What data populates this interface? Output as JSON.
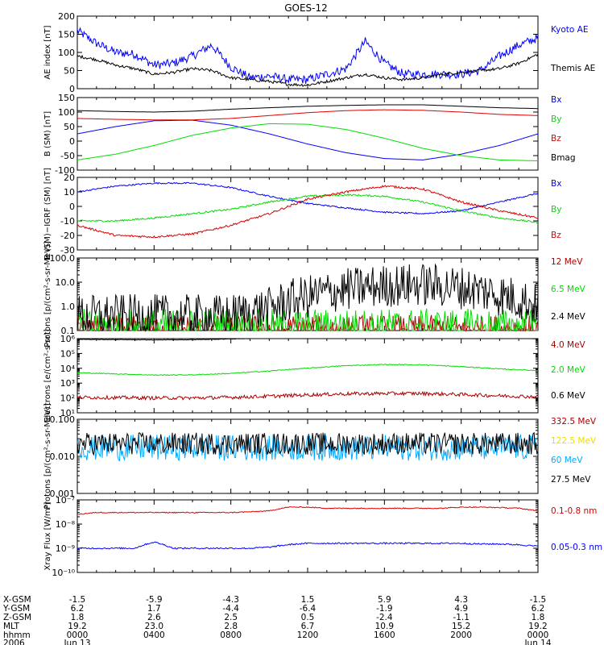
{
  "title": "GOES-12",
  "colors": {
    "black": "#000000",
    "blue": "#0000ff",
    "red": "#dd0000",
    "green": "#00dd00",
    "darkred": "#aa0000",
    "cyan": "#00aaff",
    "yellow": "#eedd00"
  },
  "bottom_axis": {
    "row_labels": [
      "X-GSM",
      "Y-GSM",
      "Z-GSM",
      "MLT",
      "hhmm",
      "2006"
    ],
    "columns": [
      [
        "-1.5",
        "6.2",
        "1.8",
        "19.2",
        "0000",
        "Jun 13"
      ],
      [
        "-5.9",
        "1.7",
        "2.6",
        "23.0",
        "0400",
        ""
      ],
      [
        "-4.3",
        "-4.4",
        "2.5",
        "2.8",
        "0800",
        ""
      ],
      [
        "1.5",
        "-6.4",
        "0.5",
        "6.7",
        "1200",
        ""
      ],
      [
        "5.9",
        "-1.9",
        "-2.4",
        "10.9",
        "1600",
        ""
      ],
      [
        "4.3",
        "4.9",
        "-1.1",
        "15.2",
        "2000",
        ""
      ],
      [
        "-1.5",
        "6.2",
        "1.8",
        "19.2",
        "0000",
        "Jun 14"
      ]
    ]
  },
  "chart_data": [
    {
      "type": "line",
      "ylabel": "AE index [nT]",
      "ylim": [
        0,
        200
      ],
      "yscale": "linear",
      "yticks": [
        "0",
        "50",
        "100",
        "150",
        "200"
      ],
      "x_hours": [
        0,
        1,
        2,
        3,
        4,
        5,
        6,
        7,
        8,
        9,
        10,
        11,
        12,
        13,
        14,
        15,
        16,
        17,
        18,
        19,
        20,
        21,
        22,
        23,
        24
      ],
      "series": [
        {
          "name": "Kyoto AE",
          "color": "blue",
          "noise": 12,
          "values": [
            160,
            125,
            100,
            95,
            65,
            70,
            90,
            120,
            60,
            30,
            35,
            25,
            25,
            40,
            55,
            130,
            70,
            40,
            40,
            40,
            40,
            50,
            90,
            120,
            140
          ]
        },
        {
          "name": "Themis AE",
          "color": "black",
          "noise": 4,
          "values": [
            90,
            80,
            65,
            55,
            40,
            45,
            55,
            50,
            30,
            25,
            20,
            12,
            10,
            20,
            30,
            40,
            30,
            25,
            30,
            40,
            45,
            50,
            55,
            70,
            95
          ]
        }
      ]
    },
    {
      "type": "line",
      "ylabel": "B (SM) [nT]",
      "ylim": [
        -100,
        150
      ],
      "yscale": "linear",
      "yticks": [
        "-100",
        "-50",
        "0",
        "50",
        "100",
        "150"
      ],
      "x_hours": [
        0,
        2,
        4,
        6,
        8,
        10,
        12,
        14,
        16,
        18,
        20,
        22,
        24
      ],
      "series": [
        {
          "name": "Bx",
          "color": "blue",
          "noise": 0,
          "values": [
            25,
            50,
            70,
            72,
            55,
            25,
            -10,
            -40,
            -60,
            -65,
            -45,
            -15,
            25
          ]
        },
        {
          "name": "By",
          "color": "green",
          "noise": 0,
          "values": [
            -65,
            -45,
            -15,
            20,
            45,
            60,
            58,
            40,
            10,
            -25,
            -50,
            -65,
            -68
          ]
        },
        {
          "name": "Bz",
          "color": "red",
          "noise": 0,
          "values": [
            78,
            75,
            73,
            73,
            78,
            88,
            98,
            105,
            108,
            106,
            100,
            92,
            88
          ]
        },
        {
          "name": "Bmag",
          "color": "black",
          "noise": 0,
          "values": [
            105,
            102,
            100,
            103,
            110,
            115,
            120,
            123,
            125,
            125,
            120,
            115,
            112
          ]
        }
      ]
    },
    {
      "type": "line",
      "ylabel": "B (SM)−IGRF (SM) [nT]",
      "ylim": [
        -30,
        20
      ],
      "yscale": "linear",
      "yticks": [
        "-30",
        "-20",
        "-10",
        "0",
        "10",
        "20"
      ],
      "x_hours": [
        0,
        2,
        4,
        6,
        8,
        10,
        12,
        14,
        16,
        18,
        20,
        22,
        24
      ],
      "series": [
        {
          "name": "Bx",
          "color": "blue",
          "noise": 0.5,
          "values": [
            10,
            14,
            16,
            16,
            13,
            7,
            2,
            -1,
            -4,
            -5,
            -3,
            3,
            9
          ]
        },
        {
          "name": "By",
          "color": "green",
          "noise": 0.6,
          "values": [
            -10,
            -10,
            -8,
            -5,
            -2,
            3,
            7,
            8,
            7,
            3,
            -3,
            -8,
            -11
          ]
        },
        {
          "name": "Bz",
          "color": "red",
          "noise": 0.7,
          "values": [
            -13,
            -20,
            -21,
            -19,
            -13,
            -5,
            5,
            10,
            14,
            12,
            3,
            -3,
            -8
          ]
        }
      ]
    },
    {
      "type": "line",
      "ylabel": "Protons [p/(cm²-s-sr-MeV)]",
      "ylim": [
        0.1,
        100
      ],
      "yscale": "log",
      "yticks": [
        "0.1",
        "1.0",
        "10.0",
        "100.0"
      ],
      "x_hours": [
        0,
        2,
        4,
        6,
        8,
        10,
        12,
        14,
        16,
        18,
        20,
        22,
        24
      ],
      "series": [
        {
          "name": "12 MeV",
          "color": "darkred",
          "noise": 0.6,
          "values": [
            0.11,
            0.11,
            0.11,
            0.11,
            0.11,
            0.11,
            0.11,
            0.11,
            0.11,
            0.11,
            0.11,
            0.11,
            0.11
          ]
        },
        {
          "name": "6.5 MeV",
          "color": "green",
          "noise": 0.8,
          "values": [
            0.13,
            0.13,
            0.13,
            0.13,
            0.13,
            0.13,
            0.13,
            0.13,
            0.13,
            0.13,
            0.13,
            0.13,
            0.13
          ]
        },
        {
          "name": "2.4 MeV",
          "color": "black",
          "noise": 0.9,
          "values": [
            0.4,
            0.4,
            0.4,
            0.4,
            0.4,
            0.8,
            2.5,
            5,
            7,
            8,
            6,
            3,
            1
          ]
        }
      ]
    },
    {
      "type": "line",
      "ylabel": "Electrons [e/(cm²-s-sr)]",
      "ylim": [
        10,
        1000000
      ],
      "yscale": "log",
      "yticks": [
        "10¹",
        "10²",
        "10³",
        "10⁴",
        "10⁵",
        "10⁶"
      ],
      "x_hours": [
        0,
        2,
        4,
        6,
        8,
        10,
        12,
        14,
        16,
        18,
        20,
        22,
        24
      ],
      "series": [
        {
          "name": "4.0 MeV",
          "color": "darkred",
          "noise": 0.12,
          "values": [
            110,
            105,
            100,
            100,
            110,
            130,
            160,
            190,
            200,
            200,
            170,
            140,
            120
          ]
        },
        {
          "name": "2.0 MeV",
          "color": "green",
          "noise": 0.03,
          "values": [
            5000,
            4200,
            3500,
            3600,
            4500,
            6500,
            10000,
            15000,
            18000,
            17000,
            13000,
            9000,
            7000
          ]
        },
        {
          "name": "0.6 MeV",
          "color": "black",
          "noise": 0.02,
          "values": [
            900000,
            850000,
            820000,
            850000,
            950000,
            1100000,
            1250000,
            1350000,
            1400000,
            1400000,
            1300000,
            1150000,
            1000000
          ]
        }
      ]
    },
    {
      "type": "line",
      "ylabel": "Protons [p/(cm²-s-sr-MeV)]",
      "ylim": [
        0.001,
        0.1
      ],
      "yscale": "log",
      "yticks": [
        "0.001",
        "0.010",
        "0.100"
      ],
      "x_hours": [
        0,
        24
      ],
      "series": [
        {
          "name": "332.5 MeV",
          "color": "darkred",
          "noise": 0,
          "values": [
            null,
            null
          ]
        },
        {
          "name": "122.5 MeV",
          "color": "yellow",
          "noise": 0,
          "values": [
            null,
            null
          ]
        },
        {
          "name": "60 MeV",
          "color": "cyan",
          "noise": 0.35,
          "values": [
            0.017,
            0.017
          ]
        },
        {
          "name": "27.5 MeV",
          "color": "black",
          "noise": 0.3,
          "values": [
            0.022,
            0.022
          ]
        }
      ]
    },
    {
      "type": "line",
      "ylabel": "Xray Flux [W/m²]",
      "ylim": [
        1e-10,
        1e-07
      ],
      "yscale": "log",
      "yticks": [
        "10⁻¹⁰",
        "10⁻⁹",
        "10⁻⁸",
        "10⁻⁷"
      ],
      "x_hours": [
        0,
        1,
        2,
        3,
        4,
        5,
        6,
        7,
        8,
        9,
        10,
        11,
        12,
        13,
        14,
        15,
        16,
        17,
        18,
        19,
        20,
        21,
        22,
        23,
        24
      ],
      "series": [
        {
          "name": "0.1-0.8 nm",
          "color": "red",
          "noise": 0.02,
          "values": [
            2.5e-08,
            3e-08,
            3e-08,
            3e-08,
            3e-08,
            3e-08,
            3e-08,
            3e-08,
            3e-08,
            3.2e-08,
            3.5e-08,
            5e-08,
            5e-08,
            4.5e-08,
            4.5e-08,
            4.5e-08,
            4.5e-08,
            4.5e-08,
            4.5e-08,
            4.5e-08,
            5e-08,
            5e-08,
            4.8e-08,
            4.5e-08,
            3.5e-08
          ]
        },
        {
          "name": "0.05-0.3 nm",
          "color": "blue",
          "noise": 0.03,
          "values": [
            1e-09,
            1e-09,
            1e-09,
            1e-09,
            1.8e-09,
            1e-09,
            1e-09,
            1e-09,
            1e-09,
            1e-09,
            1.1e-09,
            1.4e-09,
            1.6e-09,
            1.6e-09,
            1.6e-09,
            1.6e-09,
            1.6e-09,
            1.6e-09,
            1.6e-09,
            1.6e-09,
            1.6e-09,
            1.5e-09,
            1.5e-09,
            1.4e-09,
            1.2e-09
          ]
        }
      ]
    }
  ]
}
